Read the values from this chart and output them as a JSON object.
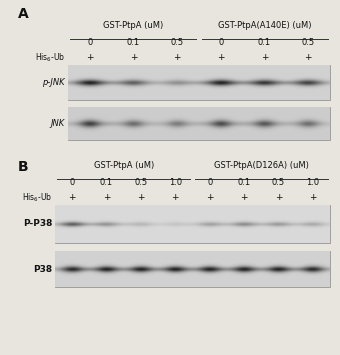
{
  "fig_bg": "#e8e5de",
  "blot_bg_A": "#c8c4bc",
  "blot_bg_B": "#c0bcb4",
  "panel_A": {
    "label": "A",
    "group1_label": "GST-PtpA (uM)",
    "group2_label": "GST-PtpA(A140E) (uM)",
    "concentrations": [
      "0",
      "0.1",
      "0.5",
      "0",
      "0.1",
      "0.5"
    ],
    "his_ub": [
      "+",
      "+",
      "+",
      "+",
      "+",
      "+"
    ],
    "blot1_label": "p-JNK",
    "blot2_label": "JNK",
    "blot1_intensities": [
      0.9,
      0.55,
      0.28,
      0.88,
      0.75,
      0.72
    ],
    "blot2_intensities": [
      0.75,
      0.5,
      0.42,
      0.68,
      0.62,
      0.5
    ]
  },
  "panel_B": {
    "label": "B",
    "group1_label": "GST-PtpA (uM)",
    "group2_label": "GST-PtpA(D126A) (uM)",
    "concentrations": [
      "0",
      "0.1",
      "0.5",
      "1.0",
      "0",
      "0.1",
      "0.5",
      "1.0"
    ],
    "his_ub": [
      "+",
      "+",
      "+",
      "+",
      "+",
      "+",
      "+",
      "+"
    ],
    "blot1_label": "P-P38",
    "blot2_label": "P38",
    "blot1_intensities": [
      0.6,
      0.3,
      0.15,
      0.08,
      0.25,
      0.35,
      0.28,
      0.22
    ],
    "blot2_intensities": [
      0.85,
      0.85,
      0.85,
      0.85,
      0.85,
      0.85,
      0.85,
      0.85
    ]
  }
}
